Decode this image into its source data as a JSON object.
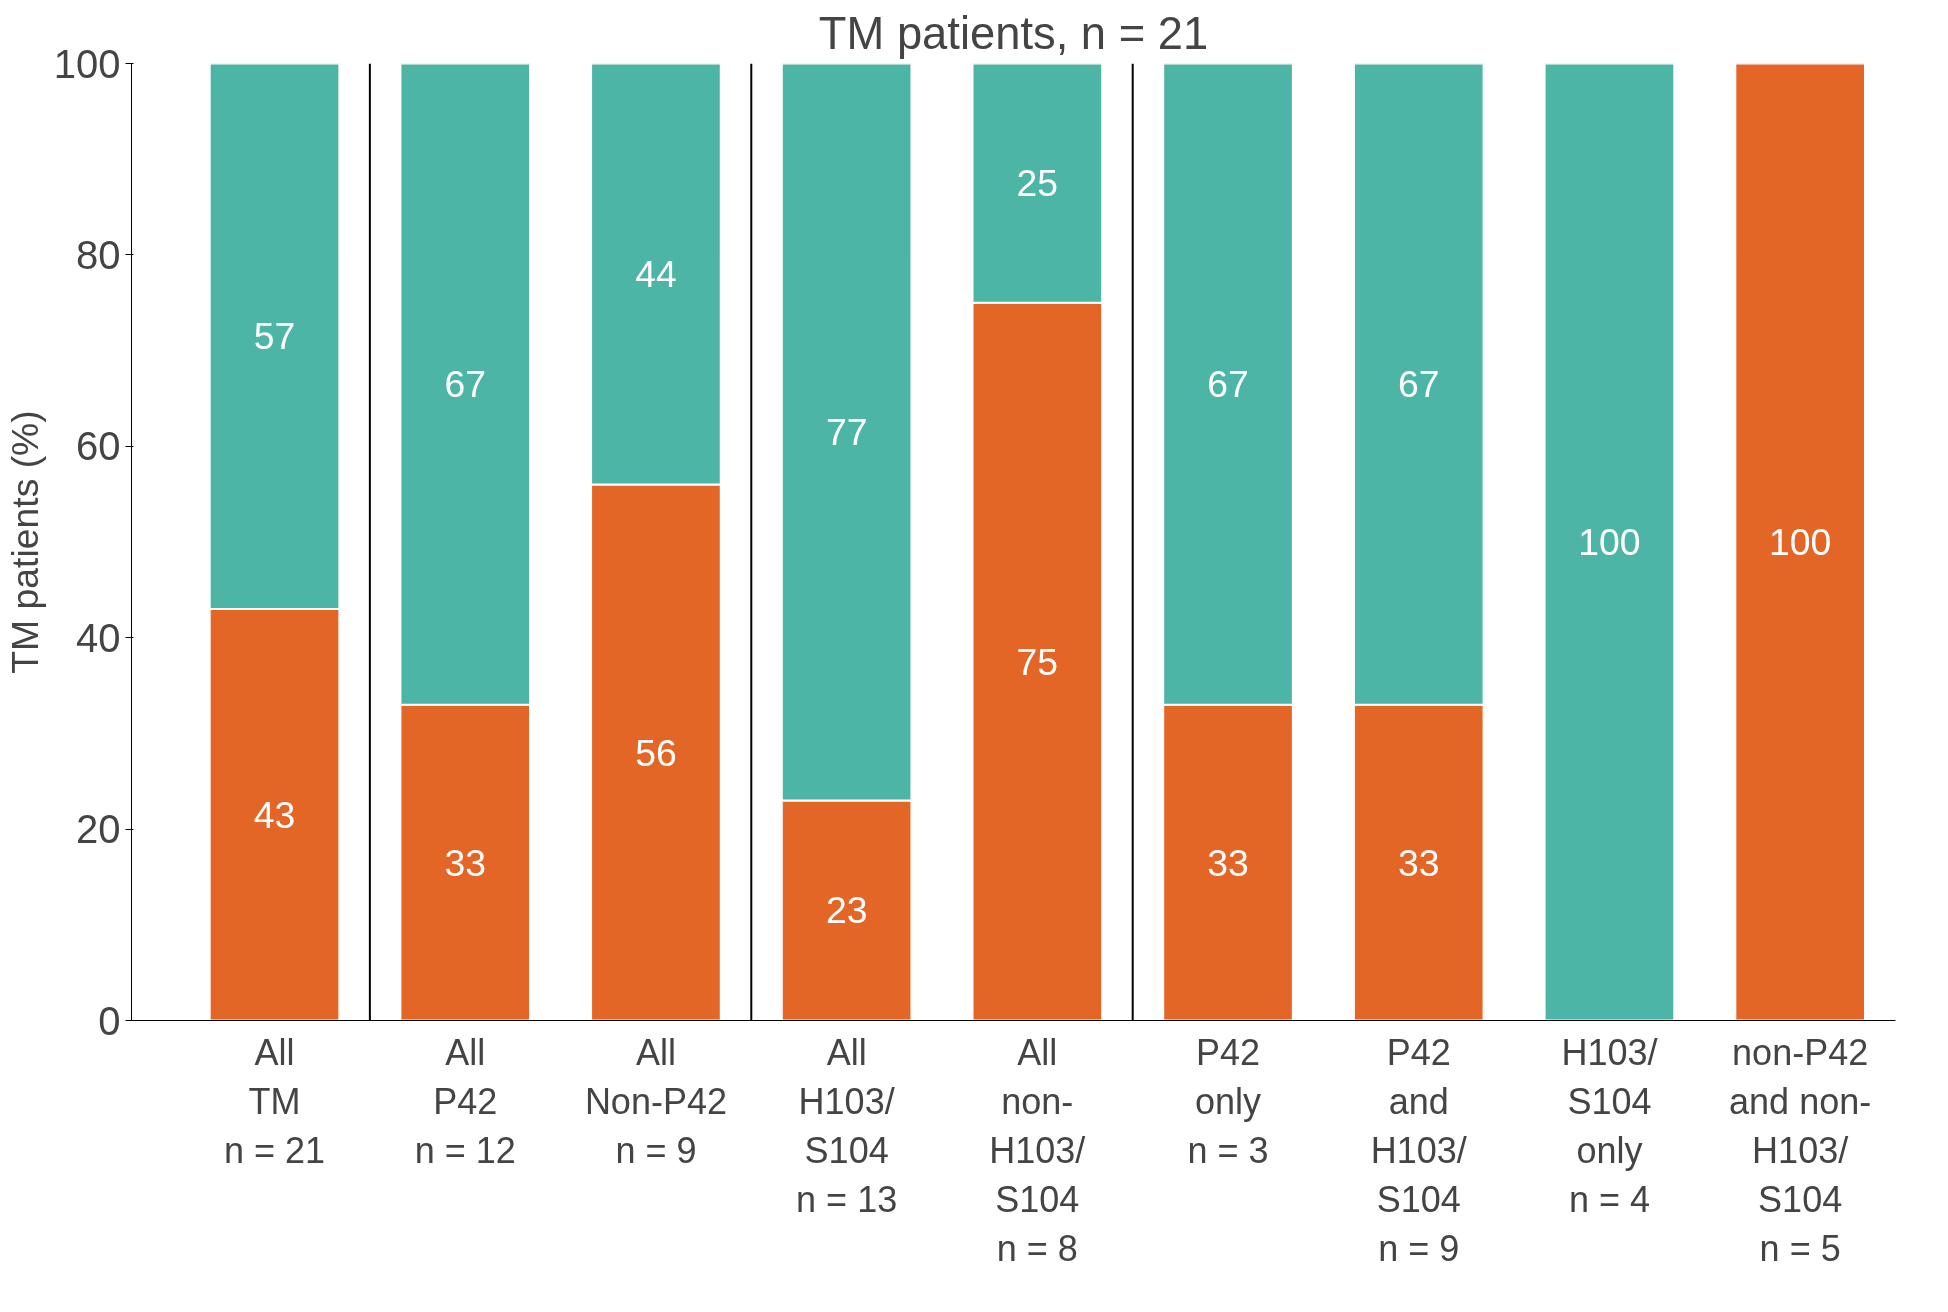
{
  "chart_data": {
    "type": "bar",
    "stacked": true,
    "title": "TM patients, n = 21",
    "ylabel": "TM patients (%)",
    "categories": [
      "All\nTM\nn = 21",
      "All\nP42\nn = 12",
      "All\nNon-P42\nn = 9",
      "All\nH103/\nS104\nn = 13",
      "All\nnon-\nH103/\nS104\nn = 8",
      "P42\nonly\nn = 3",
      "P42\nand\nH103/\nS104\nn = 9",
      "H103/\nS104\nonly\nn = 4",
      "non-P42\nand non-\nH103/\nS104\nn = 5"
    ],
    "series": [
      {
        "color": "#e36626",
        "values": [
          43,
          33,
          56,
          23,
          75,
          33,
          33,
          0,
          100
        ],
        "value_labels": [
          "43",
          "33",
          "56",
          "23",
          "75",
          "33",
          "33",
          null,
          "100"
        ]
      },
      {
        "color": "#4db5a6",
        "values": [
          57,
          67,
          44,
          77,
          25,
          67,
          67,
          100,
          0
        ],
        "value_labels": [
          "57",
          "67",
          "44",
          "77",
          "25",
          "67",
          "67",
          "100",
          null
        ]
      }
    ],
    "ylim": [
      0,
      100
    ],
    "yticks": [
      0,
      20,
      40,
      60,
      80,
      100
    ],
    "grid": false
  }
}
